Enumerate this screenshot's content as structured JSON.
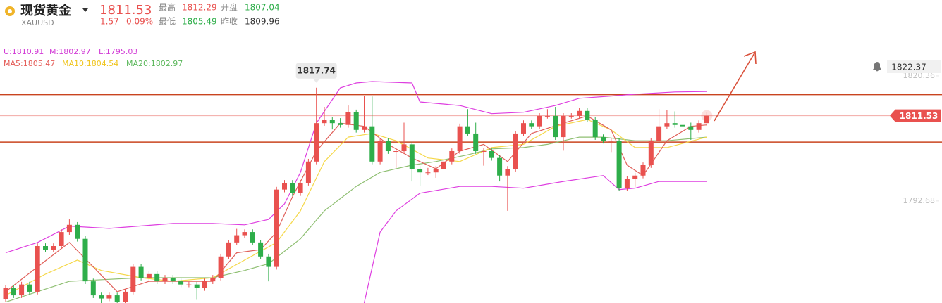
{
  "header": {
    "name": "现货黄金",
    "symbol": "XAUUSD",
    "price": "1811.53",
    "change": "1.57",
    "change_pct": "0.09%",
    "stats": [
      [
        "最高",
        "1812.29"
      ],
      [
        "开盘",
        "1807.04"
      ],
      [
        "最低",
        "1805.49"
      ],
      [
        "昨收",
        "1809.96"
      ]
    ]
  },
  "chart_data": {
    "type": "candlestick",
    "ylim": [
      1770.1,
      1837.15
    ],
    "yticks": [
      1820.36,
      1792.68
    ],
    "up_color": "#e9514f",
    "down_color": "#2eae4a",
    "indicators": [
      {
        "label": "U:1810.91",
        "color": "#d23cd6"
      },
      {
        "label": "M:1802.97",
        "color": "#d23cd6"
      },
      {
        "label": "L:1795.03",
        "color": "#d23cd6"
      },
      {
        "label": "MA5:1805.47",
        "color": "#e45b56"
      },
      {
        "label": "MA10:1804.54",
        "color": "#f0c51e"
      },
      {
        "label": "MA20:1802.97",
        "color": "#5cb85c"
      }
    ],
    "levels": [
      1816.2,
      1805.7
    ],
    "level_color": "#c9441f",
    "alert_price": 1822.37,
    "ohlc": [
      [
        1771.0,
        1774.0,
        1770.4,
        1773.4
      ],
      [
        1773.4,
        1774.0,
        1771.2,
        1771.8
      ],
      [
        1771.8,
        1774.8,
        1771.2,
        1774.2
      ],
      [
        1774.2,
        1774.8,
        1772.0,
        1772.6
      ],
      [
        1772.6,
        1783.3,
        1772.0,
        1782.7
      ],
      [
        1782.7,
        1783.3,
        1781.3,
        1781.9
      ],
      [
        1781.9,
        1783.3,
        1781.3,
        1782.7
      ],
      [
        1782.7,
        1786.4,
        1782.1,
        1785.8
      ],
      [
        1785.8,
        1788.6,
        1785.2,
        1787.4
      ],
      [
        1787.4,
        1788.0,
        1783.7,
        1784.3
      ],
      [
        1784.3,
        1784.9,
        1774.3,
        1774.9
      ],
      [
        1774.9,
        1775.5,
        1771.2,
        1771.8
      ],
      [
        1771.8,
        1772.4,
        1770.1,
        1771.1
      ],
      [
        1771.1,
        1772.4,
        1770.5,
        1771.8
      ],
      [
        1771.8,
        1772.4,
        1770.1,
        1770.3
      ],
      [
        1770.3,
        1773.2,
        1770.1,
        1772.6
      ],
      [
        1772.6,
        1778.7,
        1772.0,
        1778.1
      ],
      [
        1778.1,
        1778.7,
        1775.1,
        1775.7
      ],
      [
        1775.7,
        1777.1,
        1775.1,
        1776.5
      ],
      [
        1776.5,
        1777.1,
        1774.3,
        1774.9
      ],
      [
        1774.9,
        1776.3,
        1774.3,
        1775.7
      ],
      [
        1775.7,
        1776.3,
        1774.3,
        1774.9
      ],
      [
        1774.9,
        1775.5,
        1773.6,
        1774.2
      ],
      [
        1774.2,
        1774.8,
        1773.6,
        1774.2
      ],
      [
        1774.2,
        1774.8,
        1770.8,
        1773.4
      ],
      [
        1773.4,
        1775.5,
        1772.8,
        1774.9
      ],
      [
        1774.9,
        1776.3,
        1774.3,
        1775.7
      ],
      [
        1775.7,
        1781.0,
        1775.1,
        1780.4
      ],
      [
        1780.4,
        1784.1,
        1779.8,
        1783.5
      ],
      [
        1783.5,
        1786.5,
        1782.9,
        1785.1
      ],
      [
        1785.1,
        1786.4,
        1784.5,
        1785.8
      ],
      [
        1785.8,
        1786.4,
        1782.9,
        1783.5
      ],
      [
        1783.5,
        1784.1,
        1779.8,
        1780.4
      ],
      [
        1780.4,
        1781.0,
        1774.9,
        1778.1
      ],
      [
        1778.1,
        1795.8,
        1777.5,
        1795.2
      ],
      [
        1795.2,
        1797.3,
        1794.6,
        1796.7
      ],
      [
        1796.7,
        1797.3,
        1793.8,
        1794.4
      ],
      [
        1794.4,
        1797.3,
        1793.8,
        1796.7
      ],
      [
        1796.7,
        1802.0,
        1796.1,
        1801.4
      ],
      [
        1801.4,
        1817.74,
        1800.8,
        1809.9
      ],
      [
        1809.9,
        1813.5,
        1809.3,
        1810.7
      ],
      [
        1810.7,
        1811.3,
        1808.5,
        1809.9
      ],
      [
        1809.9,
        1811.0,
        1808.9,
        1809.5
      ],
      [
        1809.5,
        1813.8,
        1808.9,
        1812.3
      ],
      [
        1812.3,
        1812.9,
        1807.8,
        1808.4
      ],
      [
        1808.4,
        1816.0,
        1807.8,
        1809.2
      ],
      [
        1809.2,
        1815.8,
        1800.8,
        1801.4
      ],
      [
        1801.4,
        1806.6,
        1800.8,
        1806.0
      ],
      [
        1806.0,
        1806.6,
        1803.1,
        1803.7
      ],
      [
        1803.7,
        1804.3,
        1800.0,
        1803.7
      ],
      [
        1803.7,
        1810.0,
        1803.1,
        1805.2
      ],
      [
        1805.2,
        1805.8,
        1797.0,
        1799.8
      ],
      [
        1799.8,
        1800.4,
        1796.0,
        1799.0
      ],
      [
        1799.0,
        1800.0,
        1798.4,
        1799.0
      ],
      [
        1799.0,
        1800.4,
        1797.8,
        1799.8
      ],
      [
        1799.8,
        1802.0,
        1799.2,
        1801.4
      ],
      [
        1801.4,
        1804.3,
        1800.8,
        1803.7
      ],
      [
        1803.7,
        1809.8,
        1803.1,
        1809.2
      ],
      [
        1809.2,
        1813.0,
        1807.0,
        1807.6
      ],
      [
        1807.6,
        1810.0,
        1803.1,
        1803.7
      ],
      [
        1803.7,
        1804.3,
        1800.5,
        1803.7
      ],
      [
        1803.7,
        1804.3,
        1801.6,
        1802.2
      ],
      [
        1802.2,
        1802.8,
        1797.0,
        1798.3
      ],
      [
        1798.3,
        1800.4,
        1790.5,
        1799.8
      ],
      [
        1799.8,
        1808.2,
        1799.2,
        1807.6
      ],
      [
        1807.6,
        1810.5,
        1807.0,
        1809.9
      ],
      [
        1809.9,
        1810.5,
        1808.6,
        1809.2
      ],
      [
        1809.2,
        1812.1,
        1808.6,
        1811.5
      ],
      [
        1811.5,
        1813.0,
        1810.9,
        1811.5
      ],
      [
        1811.5,
        1813.5,
        1806.2,
        1806.8
      ],
      [
        1806.8,
        1812.1,
        1803.8,
        1811.5
      ],
      [
        1811.5,
        1812.1,
        1810.9,
        1811.5
      ],
      [
        1811.5,
        1813.2,
        1810.9,
        1812.6
      ],
      [
        1812.6,
        1813.2,
        1810.1,
        1810.7
      ],
      [
        1810.7,
        1811.3,
        1806.2,
        1806.8
      ],
      [
        1806.8,
        1807.4,
        1805.4,
        1806.0
      ],
      [
        1806.0,
        1806.6,
        1803.5,
        1806.0
      ],
      [
        1806.0,
        1806.6,
        1794.9,
        1795.5
      ],
      [
        1795.5,
        1798.1,
        1794.9,
        1797.5
      ],
      [
        1797.5,
        1798.9,
        1795.8,
        1798.3
      ],
      [
        1798.3,
        1801.2,
        1797.7,
        1800.6
      ],
      [
        1800.6,
        1806.6,
        1800.0,
        1806.0
      ],
      [
        1806.0,
        1813.0,
        1805.4,
        1809.2
      ],
      [
        1809.2,
        1812.8,
        1808.6,
        1809.9
      ],
      [
        1809.9,
        1812.5,
        1808.9,
        1809.5
      ],
      [
        1809.5,
        1810.5,
        1806.5,
        1809.2
      ],
      [
        1809.2,
        1810.0,
        1806.2,
        1808.4
      ],
      [
        1808.4,
        1810.5,
        1807.8,
        1809.9
      ],
      [
        1809.9,
        1812.29,
        1809.3,
        1811.53
      ]
    ],
    "lines": [
      {
        "color": "#de3fe0",
        "x": [
          0,
          4,
          8,
          13,
          21,
          26,
          30,
          33,
          35,
          37,
          39,
          42,
          44,
          46,
          51,
          52,
          57,
          61,
          65,
          69,
          72,
          76,
          79,
          84,
          88
        ],
        "values": [
          1781.2,
          1783.5,
          1787.1,
          1786.6,
          1787.7,
          1787.7,
          1787.4,
          1788.6,
          1792.05,
          1799.0,
          1809.9,
          1817.7,
          1818.8,
          1819.1,
          1818.8,
          1814.6,
          1813.8,
          1812.0,
          1812.3,
          1813.8,
          1815.4,
          1815.9,
          1816.3,
          1816.8,
          1816.9
        ]
      },
      {
        "color": "#de3fe0",
        "x": [
          45,
          47,
          49,
          52,
          57,
          61,
          65,
          70,
          75,
          77,
          79,
          82,
          88
        ],
        "values": [
          1770.1,
          1785.8,
          1790.5,
          1794.4,
          1795.9,
          1795.9,
          1795.5,
          1797.0,
          1798.3,
          1795.2,
          1795.5,
          1797.0,
          1797.0
        ]
      },
      {
        "color": "#8fbf72",
        "x": [
          0,
          8,
          17,
          26,
          30,
          33,
          37,
          40,
          44,
          47,
          51,
          54,
          58,
          61,
          65,
          68,
          72,
          75,
          79,
          83,
          88
        ],
        "values": [
          1770.3,
          1774.9,
          1775.7,
          1775.7,
          1777.3,
          1778.8,
          1784.3,
          1790.5,
          1795.9,
          1799.0,
          1800.6,
          1801.4,
          1802.9,
          1804.2,
          1804.5,
          1805.2,
          1806.8,
          1806.8,
          1806.0,
          1806.0,
          1806.8
        ]
      },
      {
        "color": "#f5d84a",
        "x": [
          0,
          5,
          9,
          12,
          17,
          21,
          26,
          30,
          34,
          37,
          40,
          43,
          46,
          49,
          53,
          57,
          61,
          65,
          69,
          73,
          76,
          79,
          83,
          88
        ],
        "values": [
          1771.8,
          1776.5,
          1779.6,
          1777.3,
          1775.7,
          1774.9,
          1775.7,
          1779.6,
          1783.5,
          1790.5,
          1801.4,
          1806.8,
          1807.6,
          1806.0,
          1802.2,
          1801.4,
          1804.5,
          1805.2,
          1809.2,
          1810.7,
          1808.4,
          1804.5,
          1804.5,
          1806.8
        ]
      },
      {
        "color": "#e0605a",
        "x": [
          0,
          4,
          8,
          11,
          14,
          18,
          22,
          26,
          29,
          32,
          34,
          36,
          39,
          42,
          45,
          48,
          51,
          54,
          57,
          60,
          63,
          66,
          70,
          73,
          76,
          78,
          80,
          83,
          86,
          88
        ],
        "values": [
          1772.6,
          1778.1,
          1783.5,
          1778.1,
          1772.6,
          1774.9,
          1774.9,
          1774.9,
          1781.2,
          1781.9,
          1785.8,
          1793.6,
          1803.7,
          1809.9,
          1809.2,
          1805.2,
          1802.2,
          1799.8,
          1803.7,
          1805.2,
          1801.4,
          1807.6,
          1809.9,
          1811.5,
          1808.4,
          1800.6,
          1798.3,
          1806.0,
          1809.2,
          1809.5
        ]
      }
    ]
  }
}
